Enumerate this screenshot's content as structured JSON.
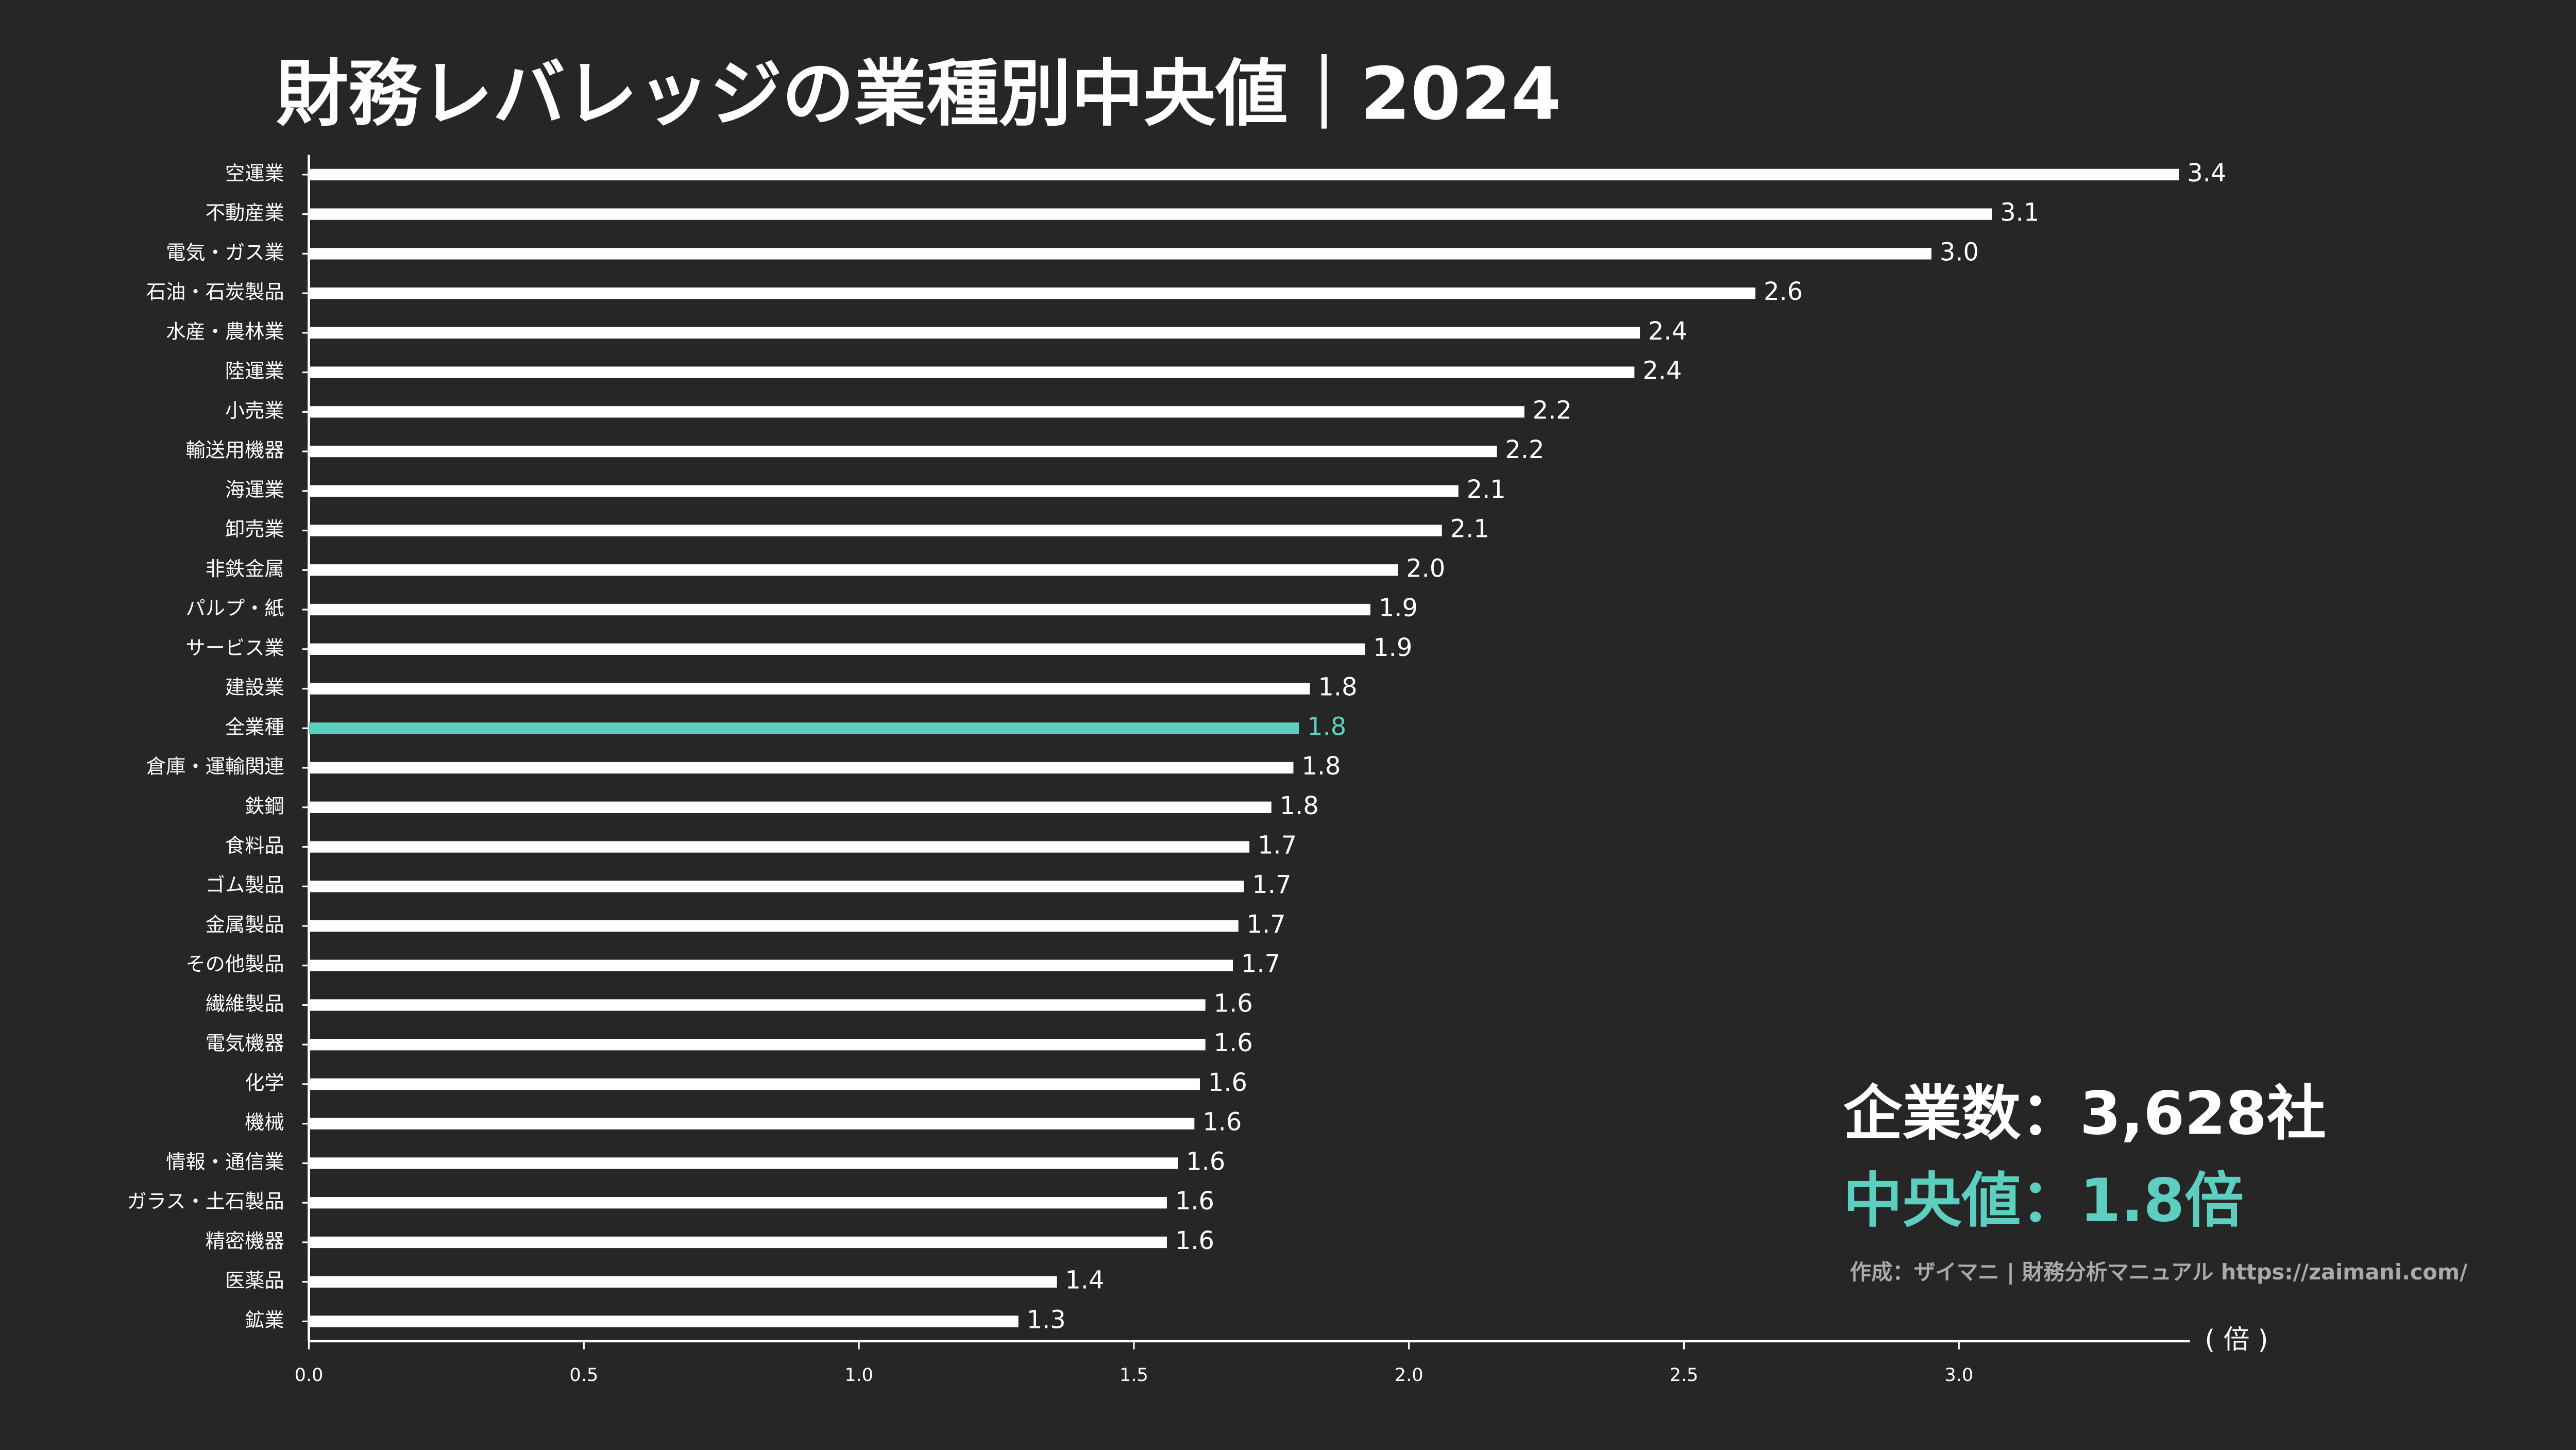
{
  "chart_data": {
    "type": "barh",
    "title": "財務レバレッジの業種別中央値｜2024",
    "categories": [
      "空運業",
      "不動産業",
      "電気・ガス業",
      "石油・石炭製品",
      "水産・農林業",
      "陸運業",
      "小売業",
      "輸送用機器",
      "海運業",
      "卸売業",
      "非鉄金属",
      "パルプ・紙",
      "サービス業",
      "建設業",
      "全業種",
      "倉庫・運輸関連",
      "鉄鋼",
      "食料品",
      "ゴム製品",
      "金属製品",
      "その他製品",
      "繊維製品",
      "電気機器",
      "化学",
      "機械",
      "情報・通信業",
      "ガラス・土石製品",
      "精密機器",
      "医薬品",
      "鉱業"
    ],
    "values": [
      3.4,
      3.06,
      2.95,
      2.63,
      2.42,
      2.41,
      2.21,
      2.16,
      2.09,
      2.06,
      1.98,
      1.93,
      1.92,
      1.82,
      1.8,
      1.79,
      1.75,
      1.71,
      1.7,
      1.69,
      1.68,
      1.63,
      1.63,
      1.62,
      1.61,
      1.58,
      1.56,
      1.56,
      1.36,
      1.29
    ],
    "value_labels": [
      "3.4",
      "3.1",
      "3.0",
      "2.6",
      "2.4",
      "2.4",
      "2.2",
      "2.2",
      "2.1",
      "2.1",
      "2.0",
      "1.9",
      "1.9",
      "1.8",
      "1.8",
      "1.8",
      "1.8",
      "1.7",
      "1.7",
      "1.7",
      "1.7",
      "1.6",
      "1.6",
      "1.6",
      "1.6",
      "1.6",
      "1.6",
      "1.6",
      "1.4",
      "1.3"
    ],
    "colors": [
      "#ffffff",
      "#ffffff",
      "#ffffff",
      "#ffffff",
      "#ffffff",
      "#ffffff",
      "#ffffff",
      "#ffffff",
      "#ffffff",
      "#ffffff",
      "#ffffff",
      "#ffffff",
      "#ffffff",
      "#ffffff",
      "#5ccfc0",
      "#ffffff",
      "#ffffff",
      "#ffffff",
      "#ffffff",
      "#ffffff",
      "#ffffff",
      "#ffffff",
      "#ffffff",
      "#ffffff",
      "#ffffff",
      "#ffffff",
      "#ffffff",
      "#ffffff",
      "#ffffff",
      "#ffffff"
    ],
    "xlim": [
      0,
      3.42
    ],
    "xticks": [
      {
        "value": 0,
        "label": "0.0"
      },
      {
        "value": 0.5,
        "label": "0.5"
      },
      {
        "value": 1,
        "label": "1.0"
      },
      {
        "value": 1.5,
        "label": "1.5"
      },
      {
        "value": 2,
        "label": "2.0"
      },
      {
        "value": 2.5,
        "label": "2.5"
      },
      {
        "value": 3,
        "label": "3.0"
      }
    ],
    "x_unit": "( 倍 )",
    "annotations": [
      "企業数：3,628社",
      "中央値：1.8倍",
      "作成：ザイマニ | 財務分析マニュアル https://zaimani.com/"
    ]
  }
}
